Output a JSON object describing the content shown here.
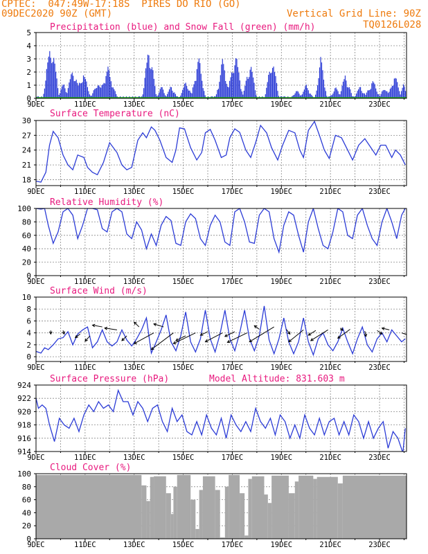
{
  "header": {
    "line1": "CPTEC:  047:49W-17:18S  PIRES DO RIO (GO)",
    "line2": "09DEC2020 90Z (GMT)",
    "grid_note": "Vertical Grid Line: 90Z",
    "code": "TQ0126L028"
  },
  "colors": {
    "header": "#ee7a0c",
    "title": "#e8197e",
    "series": "#2b3bd6",
    "snow": "#22aa22",
    "cloud": "#a9a9a9",
    "wind_arrow": "#000000"
  },
  "x_ticks": [
    "9DEC",
    "11DEC",
    "13DEC",
    "15DEC",
    "17DEC",
    "19DEC",
    "21DEC",
    "23DEC"
  ],
  "chart_data": [
    {
      "type": "bar",
      "title": "Precipitation (blue) and Snow Fall (green) (mm/h)",
      "ylim": [
        0,
        5
      ],
      "yticks": [
        "0",
        "1",
        "2",
        "3",
        "4",
        "5"
      ],
      "x_day_range": [
        9,
        24.1
      ],
      "events": [
        {
          "day": 9.6,
          "peak": 4.9,
          "width": 0.35
        },
        {
          "day": 10.1,
          "peak": 1.2,
          "width": 0.3
        },
        {
          "day": 10.5,
          "peak": 2.5,
          "width": 0.35
        },
        {
          "day": 10.9,
          "peak": 2.2,
          "width": 0.35
        },
        {
          "day": 11.5,
          "peak": 1.4,
          "width": 0.3
        },
        {
          "day": 11.9,
          "peak": 2.6,
          "width": 0.4
        },
        {
          "day": 13.6,
          "peak": 4.5,
          "width": 0.3
        },
        {
          "day": 14.1,
          "peak": 1.0,
          "width": 0.25
        },
        {
          "day": 14.5,
          "peak": 1.1,
          "width": 0.25
        },
        {
          "day": 15.1,
          "peak": 1.4,
          "width": 0.3
        },
        {
          "day": 15.6,
          "peak": 3.5,
          "width": 0.3
        },
        {
          "day": 16.6,
          "peak": 3.3,
          "width": 0.3
        },
        {
          "day": 17.1,
          "peak": 3.8,
          "width": 0.35
        },
        {
          "day": 17.7,
          "peak": 3.1,
          "width": 0.3
        },
        {
          "day": 18.6,
          "peak": 3.5,
          "width": 0.3
        },
        {
          "day": 19.6,
          "peak": 0.7,
          "width": 0.25
        },
        {
          "day": 20.0,
          "peak": 1.1,
          "width": 0.3
        },
        {
          "day": 20.6,
          "peak": 3.4,
          "width": 0.25
        },
        {
          "day": 21.2,
          "peak": 0.9,
          "width": 0.3
        },
        {
          "day": 21.6,
          "peak": 2.0,
          "width": 0.3
        },
        {
          "day": 22.2,
          "peak": 1.0,
          "width": 0.3
        },
        {
          "day": 22.7,
          "peak": 1.5,
          "width": 0.35
        },
        {
          "day": 23.2,
          "peak": 1.0,
          "width": 0.25
        },
        {
          "day": 23.6,
          "peak": 2.0,
          "width": 0.3
        },
        {
          "day": 23.95,
          "peak": 1.2,
          "width": 0.2
        }
      ],
      "snow": 0
    },
    {
      "type": "line",
      "title": "Surface Temperature (nC)",
      "ylim": [
        16.8,
        30
      ],
      "yticks": [
        "18",
        "21",
        "24",
        "27",
        "30"
      ],
      "x_day_range": [
        9,
        24.1
      ],
      "x": [
        9.0,
        9.2,
        9.4,
        9.55,
        9.7,
        9.9,
        10.1,
        10.3,
        10.5,
        10.7,
        10.95,
        11.1,
        11.3,
        11.5,
        11.75,
        12.0,
        12.3,
        12.5,
        12.7,
        12.9,
        13.15,
        13.35,
        13.5,
        13.7,
        13.85,
        14.05,
        14.3,
        14.55,
        14.7,
        14.85,
        15.05,
        15.3,
        15.55,
        15.75,
        15.9,
        16.1,
        16.3,
        16.55,
        16.75,
        16.9,
        17.1,
        17.3,
        17.55,
        17.75,
        17.95,
        18.15,
        18.4,
        18.6,
        18.85,
        19.05,
        19.3,
        19.55,
        19.75,
        19.9,
        20.1,
        20.35,
        20.55,
        20.75,
        20.95,
        21.2,
        21.45,
        21.7,
        21.9,
        22.15,
        22.4,
        22.65,
        22.85,
        23.05,
        23.25,
        23.5,
        23.65,
        23.85,
        24.05
      ],
      "y": [
        17.7,
        17.5,
        19.5,
        25,
        27.8,
        26.5,
        23,
        21,
        20,
        23,
        22.5,
        20.5,
        19.5,
        19,
        21.5,
        25.5,
        23.5,
        21,
        20,
        20.5,
        26,
        27.5,
        26.5,
        28.7,
        28,
        26,
        22.5,
        21.5,
        24,
        28.5,
        28.3,
        24.5,
        22,
        23.5,
        27.5,
        28.2,
        26,
        22.5,
        23,
        26.5,
        28.3,
        27.6,
        24,
        22.5,
        25.5,
        29,
        27.5,
        24.5,
        22,
        25,
        28,
        27.5,
        24,
        22.5,
        28,
        29.8,
        27,
        24,
        22.3,
        27,
        26.5,
        24,
        22,
        25,
        26.3,
        24.5,
        23,
        25,
        25,
        22.5,
        24,
        23,
        21
      ]
    },
    {
      "type": "line",
      "title": "Relative Humidity (%)",
      "ylim": [
        0,
        100
      ],
      "yticks": [
        "0",
        "20",
        "40",
        "60",
        "80",
        "100"
      ],
      "x_day_range": [
        9,
        24.1
      ],
      "x": [
        9.0,
        9.2,
        9.35,
        9.5,
        9.7,
        9.9,
        10.1,
        10.3,
        10.5,
        10.7,
        10.9,
        11.1,
        11.3,
        11.5,
        11.7,
        11.9,
        12.1,
        12.3,
        12.5,
        12.7,
        12.9,
        13.1,
        13.3,
        13.5,
        13.7,
        13.9,
        14.1,
        14.3,
        14.5,
        14.7,
        14.9,
        15.1,
        15.3,
        15.5,
        15.7,
        15.9,
        16.1,
        16.3,
        16.5,
        16.7,
        16.9,
        17.1,
        17.3,
        17.5,
        17.7,
        17.9,
        18.1,
        18.3,
        18.5,
        18.7,
        18.9,
        19.1,
        19.3,
        19.5,
        19.7,
        19.9,
        20.1,
        20.3,
        20.5,
        20.7,
        20.9,
        21.1,
        21.3,
        21.5,
        21.7,
        21.9,
        22.1,
        22.3,
        22.5,
        22.7,
        22.9,
        23.1,
        23.3,
        23.5,
        23.7,
        23.9,
        24.05
      ],
      "y": [
        100,
        99,
        100,
        75,
        48,
        65,
        95,
        100,
        90,
        55,
        75,
        100,
        100,
        98,
        70,
        65,
        95,
        100,
        95,
        62,
        55,
        80,
        68,
        40,
        62,
        45,
        75,
        88,
        82,
        48,
        45,
        80,
        92,
        85,
        55,
        45,
        75,
        90,
        80,
        50,
        45,
        95,
        100,
        80,
        50,
        48,
        90,
        100,
        95,
        55,
        35,
        75,
        95,
        90,
        60,
        35,
        80,
        100,
        70,
        45,
        40,
        65,
        100,
        95,
        60,
        55,
        90,
        100,
        75,
        55,
        45,
        80,
        100,
        80,
        55,
        90,
        100
      ]
    },
    {
      "type": "line",
      "title": "Surface Wind (m/s)",
      "ylim": [
        -0.8,
        10
      ],
      "yticks": [
        "0",
        "2",
        "4",
        "6",
        "8",
        "10"
      ],
      "x_day_range": [
        9,
        24.1
      ],
      "x": [
        9.0,
        9.2,
        9.35,
        9.5,
        9.7,
        9.9,
        10.1,
        10.3,
        10.5,
        10.7,
        10.9,
        11.1,
        11.3,
        11.5,
        11.7,
        11.9,
        12.1,
        12.3,
        12.5,
        12.7,
        12.9,
        13.1,
        13.3,
        13.5,
        13.7,
        13.9,
        14.1,
        14.3,
        14.5,
        14.7,
        14.9,
        15.1,
        15.3,
        15.5,
        15.7,
        15.9,
        16.1,
        16.3,
        16.5,
        16.7,
        16.9,
        17.1,
        17.3,
        17.5,
        17.7,
        17.9,
        18.1,
        18.3,
        18.5,
        18.7,
        18.9,
        19.1,
        19.3,
        19.5,
        19.7,
        19.9,
        20.1,
        20.3,
        20.5,
        20.7,
        20.9,
        21.1,
        21.3,
        21.5,
        21.7,
        21.9,
        22.1,
        22.3,
        22.5,
        22.7,
        22.9,
        23.1,
        23.3,
        23.5,
        23.7,
        23.9,
        24.05
      ],
      "y": [
        0.9,
        0.6,
        1.5,
        1.2,
        2.0,
        3.0,
        3.2,
        4.2,
        2.0,
        3.8,
        4.5,
        5.0,
        1.5,
        2.5,
        4.5,
        2.5,
        1.8,
        2.5,
        4.5,
        2.8,
        1.8,
        3.0,
        4.5,
        6.5,
        0.6,
        2.5,
        4.5,
        7.0,
        2.5,
        1.0,
        3.5,
        7.5,
        2.5,
        0.8,
        3.0,
        7.8,
        3.0,
        0.8,
        3.8,
        7.8,
        3.0,
        1.0,
        4.0,
        7.8,
        3.0,
        1.0,
        3.5,
        8.5,
        2.8,
        0.5,
        3.0,
        6.5,
        2.5,
        0.5,
        2.5,
        6.5,
        2.5,
        0.3,
        3.0,
        4.0,
        2.0,
        1.0,
        2.5,
        4.8,
        2.5,
        0.5,
        3.0,
        5.0,
        2.0,
        0.8,
        3.0,
        4.0,
        2.5,
        4.5,
        3.5,
        2.5,
        3.0
      ],
      "arrows": [
        {
          "day": 9.6,
          "val": 4.4,
          "dx": 0.0,
          "dy": -0.6
        },
        {
          "day": 10.1,
          "val": 4.4,
          "dx": 0.05,
          "dy": -0.6
        },
        {
          "day": 10.8,
          "val": 3.8,
          "dx": -0.2,
          "dy": -0.6
        },
        {
          "day": 11.2,
          "val": 3.5,
          "dx": -0.2,
          "dy": -0.9
        },
        {
          "day": 11.7,
          "val": 5.0,
          "dx": -0.4,
          "dy": 0.3
        },
        {
          "day": 12.3,
          "val": 4.5,
          "dx": -0.5,
          "dy": 0.3
        },
        {
          "day": 12.7,
          "val": 3.5,
          "dx": -0.2,
          "dy": -0.8
        },
        {
          "day": 13.2,
          "val": 5.0,
          "dx": -0.2,
          "dy": 0.8
        },
        {
          "day": 13.8,
          "val": 4.0,
          "dx": -0.8,
          "dy": -1.8
        },
        {
          "day": 14.2,
          "val": 5.0,
          "dx": -0.4,
          "dy": 0.5
        },
        {
          "day": 14.6,
          "val": 4.0,
          "dx": -0.9,
          "dy": -2.8
        },
        {
          "day": 15.1,
          "val": 3.5,
          "dx": -0.4,
          "dy": -0.8
        },
        {
          "day": 15.5,
          "val": 4.0,
          "dx": -0.9,
          "dy": -1.8
        },
        {
          "day": 16.0,
          "val": 4.2,
          "dx": -0.3,
          "dy": -0.6
        },
        {
          "day": 16.6,
          "val": 4.0,
          "dx": -0.7,
          "dy": -1.5
        },
        {
          "day": 17.1,
          "val": 4.2,
          "dx": -0.4,
          "dy": -0.8
        },
        {
          "day": 17.6,
          "val": 4.0,
          "dx": -0.8,
          "dy": -1.6
        },
        {
          "day": 18.1,
          "val": 4.6,
          "dx": -0.2,
          "dy": 0.6
        },
        {
          "day": 18.7,
          "val": 5.0,
          "dx": -1.0,
          "dy": -2.5
        },
        {
          "day": 19.2,
          "val": 4.6,
          "dx": 0.15,
          "dy": -0.8
        },
        {
          "day": 19.9,
          "val": 4.5,
          "dx": -0.6,
          "dy": -2.0
        },
        {
          "day": 20.4,
          "val": 4.4,
          "dx": -0.3,
          "dy": -0.8
        },
        {
          "day": 20.9,
          "val": 4.5,
          "dx": -0.7,
          "dy": -1.8
        },
        {
          "day": 21.4,
          "val": 4.8,
          "dx": 0.1,
          "dy": -0.4
        },
        {
          "day": 21.8,
          "val": 4.6,
          "dx": -0.5,
          "dy": -1.5
        },
        {
          "day": 22.4,
          "val": 4.3,
          "dx": 0.05,
          "dy": -0.9
        },
        {
          "day": 22.9,
          "val": 4.4,
          "dx": 0.2,
          "dy": -0.6
        },
        {
          "day": 23.4,
          "val": 4.5,
          "dx": -0.3,
          "dy": 0.3
        },
        {
          "day": 23.9,
          "val": 4.0,
          "dx": 0.3,
          "dy": -0.4
        }
      ]
    },
    {
      "type": "line",
      "title": "Surface Pressure (hPa)",
      "annotation": "Model Altitude: 831.603 m",
      "ylim": [
        914,
        924
      ],
      "yticks": [
        "914",
        "916",
        "918",
        "920",
        "922",
        "924"
      ],
      "x_day_range": [
        9,
        24.1
      ],
      "x": [
        9.0,
        9.1,
        9.25,
        9.4,
        9.55,
        9.75,
        9.95,
        10.15,
        10.35,
        10.55,
        10.75,
        10.95,
        11.15,
        11.35,
        11.55,
        11.75,
        11.95,
        12.15,
        12.35,
        12.55,
        12.75,
        12.95,
        13.15,
        13.35,
        13.55,
        13.75,
        13.95,
        14.15,
        14.35,
        14.55,
        14.75,
        14.95,
        15.15,
        15.35,
        15.55,
        15.75,
        15.95,
        16.15,
        16.35,
        16.55,
        16.75,
        16.95,
        17.15,
        17.35,
        17.55,
        17.75,
        17.95,
        18.15,
        18.35,
        18.55,
        18.75,
        18.95,
        19.15,
        19.35,
        19.55,
        19.75,
        19.95,
        20.15,
        20.35,
        20.55,
        20.75,
        20.95,
        21.15,
        21.35,
        21.55,
        21.75,
        21.95,
        22.15,
        22.35,
        22.55,
        22.75,
        22.95,
        23.15,
        23.35,
        23.55,
        23.75,
        23.95,
        24.05
      ],
      "y": [
        922,
        920.5,
        921,
        920.5,
        918,
        915.5,
        919,
        918,
        917.5,
        919,
        917,
        919.5,
        921,
        920,
        921.5,
        920.5,
        921,
        920,
        923.2,
        921.5,
        921.5,
        919.5,
        921.5,
        920.5,
        918.5,
        920.5,
        921,
        918.5,
        917,
        920.5,
        918.5,
        919.5,
        917,
        916.5,
        918.5,
        916.5,
        919.5,
        917.5,
        916.5,
        919,
        916,
        919.5,
        918,
        917,
        918.5,
        917,
        920.5,
        918.5,
        917.5,
        919,
        916.5,
        919.5,
        918.5,
        916,
        918,
        916,
        919.5,
        917.5,
        916.5,
        919,
        916.5,
        918.5,
        919,
        916.5,
        918.5,
        916.5,
        919.5,
        918.5,
        916,
        918.5,
        916,
        917.5,
        918.5,
        914.5,
        917,
        916,
        913.8,
        917.5
      ]
    },
    {
      "type": "bar",
      "title": "Cloud Cover (%)",
      "ylim": [
        0,
        100
      ],
      "yticks": [
        "0",
        "20",
        "40",
        "60",
        "80",
        "100"
      ],
      "x_day_range": [
        9,
        24.1
      ],
      "segments": [
        {
          "from": 9.0,
          "to": 13.3,
          "value": 98
        },
        {
          "from": 13.3,
          "to": 13.5,
          "value": 82
        },
        {
          "from": 13.5,
          "to": 13.65,
          "value": 58
        },
        {
          "from": 13.65,
          "to": 13.8,
          "value": 95
        },
        {
          "from": 13.8,
          "to": 14.3,
          "value": 96
        },
        {
          "from": 14.3,
          "to": 14.5,
          "value": 70
        },
        {
          "from": 14.5,
          "to": 14.6,
          "value": 38
        },
        {
          "from": 14.6,
          "to": 14.75,
          "value": 80
        },
        {
          "from": 14.75,
          "to": 15.3,
          "value": 98
        },
        {
          "from": 15.3,
          "to": 15.5,
          "value": 60
        },
        {
          "from": 15.5,
          "to": 15.65,
          "value": 15
        },
        {
          "from": 15.65,
          "to": 15.8,
          "value": 75
        },
        {
          "from": 15.8,
          "to": 16.3,
          "value": 96
        },
        {
          "from": 16.3,
          "to": 16.5,
          "value": 75
        },
        {
          "from": 16.5,
          "to": 16.7,
          "value": 2
        },
        {
          "from": 16.7,
          "to": 16.85,
          "value": 80
        },
        {
          "from": 16.85,
          "to": 17.3,
          "value": 98
        },
        {
          "from": 17.3,
          "to": 17.5,
          "value": 70
        },
        {
          "from": 17.5,
          "to": 17.65,
          "value": 5
        },
        {
          "from": 17.65,
          "to": 17.8,
          "value": 92
        },
        {
          "from": 17.8,
          "to": 18.3,
          "value": 96
        },
        {
          "from": 18.3,
          "to": 18.45,
          "value": 68
        },
        {
          "from": 18.45,
          "to": 18.6,
          "value": 55
        },
        {
          "from": 18.6,
          "to": 19.3,
          "value": 97
        },
        {
          "from": 19.3,
          "to": 19.55,
          "value": 70
        },
        {
          "from": 19.55,
          "to": 19.7,
          "value": 88
        },
        {
          "from": 19.7,
          "to": 20.3,
          "value": 97
        },
        {
          "from": 20.3,
          "to": 20.45,
          "value": 92
        },
        {
          "from": 20.45,
          "to": 21.3,
          "value": 95
        },
        {
          "from": 21.3,
          "to": 21.5,
          "value": 85
        },
        {
          "from": 21.5,
          "to": 24.1,
          "value": 97
        }
      ]
    }
  ]
}
